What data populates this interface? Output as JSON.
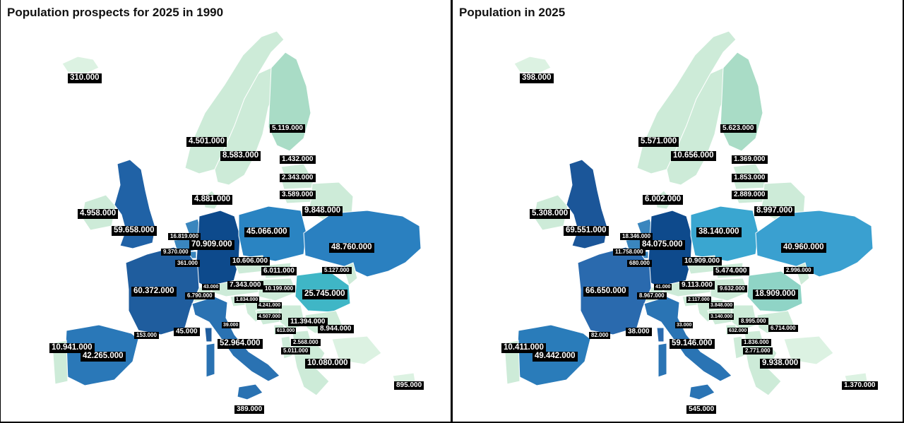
{
  "panels": [
    {
      "title": "Population prospects for 2025 in 1990",
      "colors": {
        "france": "#1f5d9e",
        "germany": "#0d4a8c",
        "uk": "#2062a6",
        "spain": "#2a78b8",
        "italy": "#2a72b2",
        "poland": "#2a84c2",
        "ukraine": "#2a80c0",
        "romania": "#3fb6c6",
        "light": "#cdebd8",
        "lighter": "#dcf2e2",
        "mid": "#a9dcc6",
        "benelux": "#3a86be"
      },
      "labels": [
        {
          "id": "iceland",
          "value": "310.000"
        },
        {
          "id": "norway",
          "value": "4.501.000"
        },
        {
          "id": "finland",
          "value": "5.119.000"
        },
        {
          "id": "sweden",
          "value": "8.583.000"
        },
        {
          "id": "estonia",
          "value": "1.432.000"
        },
        {
          "id": "latvia",
          "value": "2.343.000"
        },
        {
          "id": "lithuania",
          "value": "3.589.000"
        },
        {
          "id": "denmark",
          "value": "4.881.000"
        },
        {
          "id": "belarus",
          "value": "9.848.000"
        },
        {
          "id": "ireland",
          "value": "4.958.000"
        },
        {
          "id": "uk",
          "value": "59.658.000"
        },
        {
          "id": "netherlands",
          "value": "16.819.000"
        },
        {
          "id": "germany",
          "value": "70.909.000"
        },
        {
          "id": "poland",
          "value": "45.066.000"
        },
        {
          "id": "ukraine",
          "value": "48.760.000"
        },
        {
          "id": "belgium",
          "value": "9.370.000"
        },
        {
          "id": "luxembourg",
          "value": "361.000"
        },
        {
          "id": "czechia",
          "value": "10.606.000"
        },
        {
          "id": "slovakia",
          "value": "6.011.000"
        },
        {
          "id": "moldova",
          "value": "5.127.000"
        },
        {
          "id": "liechtenstein",
          "value": "43.000"
        },
        {
          "id": "austria",
          "value": "7.343.000"
        },
        {
          "id": "hungary",
          "value": "10.199.000"
        },
        {
          "id": "switzerland",
          "value": "6.790.000"
        },
        {
          "id": "romania",
          "value": "25.745.000"
        },
        {
          "id": "france",
          "value": "60.372.000"
        },
        {
          "id": "slovenia",
          "value": "1.834.000"
        },
        {
          "id": "croatia",
          "value": "4.241.000"
        },
        {
          "id": "bosnia",
          "value": "4.507.000"
        },
        {
          "id": "serbia",
          "value": "11.394.000"
        },
        {
          "id": "sanmarino",
          "value": "39.000"
        },
        {
          "id": "montenegro",
          "value": "613.000"
        },
        {
          "id": "bulgaria",
          "value": "8.944.000"
        },
        {
          "id": "andorra",
          "value": "153.000"
        },
        {
          "id": "monaco",
          "value": "45.000"
        },
        {
          "id": "italy",
          "value": "52.964.000"
        },
        {
          "id": "portugal",
          "value": "10.941.000"
        },
        {
          "id": "albania",
          "value": "2.568.000"
        },
        {
          "id": "northmacedonia",
          "value": "5.011.000"
        },
        {
          "id": "spain",
          "value": "42.265.000"
        },
        {
          "id": "greece",
          "value": "10.080.000"
        },
        {
          "id": "cyprus",
          "value": "895.000"
        },
        {
          "id": "malta",
          "value": "389.000"
        }
      ]
    },
    {
      "title": "Population in 2025",
      "colors": {
        "france": "#2a6aae",
        "germany": "#0e4a8c",
        "uk": "#1b5699",
        "spain": "#2a7cba",
        "italy": "#2a74b4",
        "poland": "#3aa6d0",
        "ukraine": "#3aa0d0",
        "romania": "#8fd4c6",
        "light": "#cdebd8",
        "lighter": "#dcf2e2",
        "mid": "#a9dcc6",
        "benelux": "#3a86be"
      },
      "labels": [
        {
          "id": "iceland",
          "value": "398.000"
        },
        {
          "id": "norway",
          "value": "5.571.000"
        },
        {
          "id": "finland",
          "value": "5.623.000"
        },
        {
          "id": "sweden",
          "value": "10.656.000"
        },
        {
          "id": "estonia",
          "value": "1.369.000"
        },
        {
          "id": "latvia",
          "value": "1.853.000"
        },
        {
          "id": "lithuania",
          "value": "2.889.000"
        },
        {
          "id": "denmark",
          "value": "6.002.000"
        },
        {
          "id": "belarus",
          "value": "8.997.000"
        },
        {
          "id": "ireland",
          "value": "5.308.000"
        },
        {
          "id": "uk",
          "value": "69.551.000"
        },
        {
          "id": "netherlands",
          "value": "18.346.000"
        },
        {
          "id": "germany",
          "value": "84.075.000"
        },
        {
          "id": "poland",
          "value": "38.140.000"
        },
        {
          "id": "ukraine",
          "value": "40.960.000"
        },
        {
          "id": "belgium",
          "value": "11.758.000"
        },
        {
          "id": "luxembourg",
          "value": "680.000"
        },
        {
          "id": "czechia",
          "value": "10.909.000"
        },
        {
          "id": "slovakia",
          "value": "5.474.000"
        },
        {
          "id": "moldova",
          "value": "2.996.000"
        },
        {
          "id": "liechtenstein",
          "value": "41.000"
        },
        {
          "id": "austria",
          "value": "9.113.000"
        },
        {
          "id": "hungary",
          "value": "9.632.000"
        },
        {
          "id": "switzerland",
          "value": "8.967.000"
        },
        {
          "id": "romania",
          "value": "18.909.000"
        },
        {
          "id": "france",
          "value": "66.650.000"
        },
        {
          "id": "slovenia",
          "value": "2.117.000"
        },
        {
          "id": "croatia",
          "value": "3.848.000"
        },
        {
          "id": "bosnia",
          "value": "3.140.000"
        },
        {
          "id": "serbia",
          "value": "8.995.000"
        },
        {
          "id": "sanmarino",
          "value": "33.000"
        },
        {
          "id": "montenegro",
          "value": "632.000"
        },
        {
          "id": "bulgaria",
          "value": "6.714.000"
        },
        {
          "id": "andorra",
          "value": "82.000"
        },
        {
          "id": "monaco",
          "value": "38.000"
        },
        {
          "id": "italy",
          "value": "59.146.000"
        },
        {
          "id": "portugal",
          "value": "10.411.000"
        },
        {
          "id": "albania",
          "value": "2.771.000"
        },
        {
          "id": "northmacedonia",
          "value": "1.836.000"
        },
        {
          "id": "spain",
          "value": "49.442.000"
        },
        {
          "id": "greece",
          "value": "9.938.000"
        },
        {
          "id": "cyprus",
          "value": "1.370.000"
        },
        {
          "id": "malta",
          "value": "545.000"
        }
      ]
    }
  ]
}
